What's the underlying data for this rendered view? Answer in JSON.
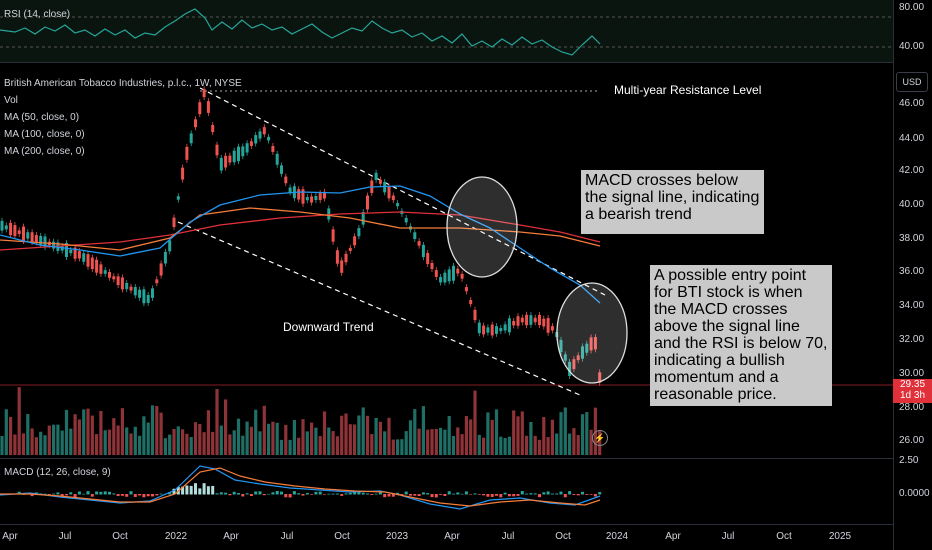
{
  "rsi": {
    "label": "RSI (14, close)",
    "levels": [
      "80.00",
      "40.00"
    ]
  },
  "main": {
    "title": "British American Tobacco Industries, p.l.c., 1W, NYSE",
    "indicators": [
      "Vol",
      "MA (50, close, 0)",
      "MA (100, close, 0)",
      "MA (200, close, 0)"
    ],
    "currency": "USD",
    "price_levels": [
      "46.00",
      "44.00",
      "42.00",
      "40.00",
      "38.00",
      "36.00",
      "34.00",
      "32.00",
      "30.00",
      "28.00",
      "26.00"
    ],
    "last_price": "29.35",
    "countdown": "1d 3h",
    "colors": {
      "up": "#26a69a",
      "down": "#ef5350",
      "ma50": "#2196f3",
      "ma100": "#f57c3a",
      "ma200": "#e0303a"
    }
  },
  "annotations": {
    "resistance": "Multi-year Resistance Level",
    "trend": "Downward Trend",
    "macd_note": "MACD crosses below the signal line, indicating a bearish trend",
    "entry_note": "A possible entry point for BTI stock is when the MACD crosses above the signal line and the RSI is below 70, indicating a bullish momentum and a reasonable price."
  },
  "macd": {
    "label": "MACD (12, 26, close, 9)",
    "levels": [
      "2.50",
      "0.0000"
    ]
  },
  "time_axis": [
    "Apr",
    "Jul",
    "Oct",
    "2022",
    "Apr",
    "Jul",
    "Oct",
    "2023",
    "Apr",
    "Jul",
    "Oct",
    "2024",
    "Apr",
    "Jul",
    "Oct",
    "2025"
  ]
}
